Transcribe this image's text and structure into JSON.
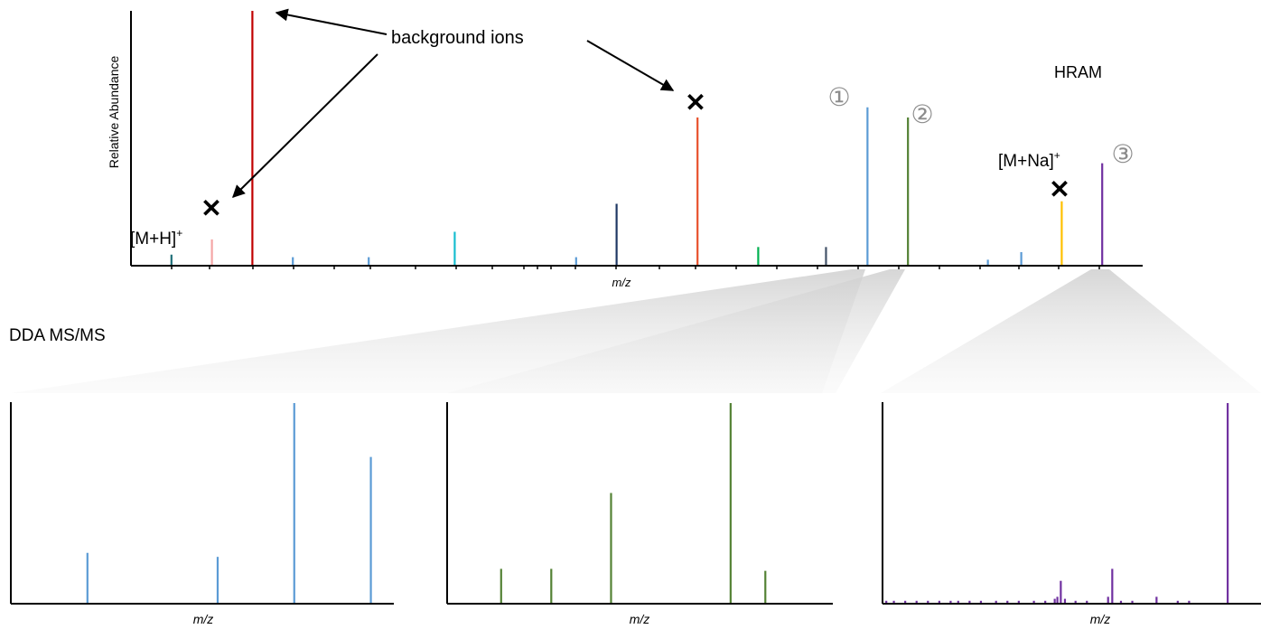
{
  "ms1": {
    "ylabel": "Relative Abundance",
    "xlabel": "m/z",
    "mode_label": "HRAM",
    "callout": "background ions",
    "adduct_h": "[M+H]",
    "adduct_na": "[M+Na]",
    "adduct_sup": "+",
    "precursor_1": "①",
    "precursor_2": "②",
    "precursor_3": "③",
    "exclude_mark": "✕"
  },
  "dda_label": "DDA MS/MS",
  "colors": {
    "axis": "#000000",
    "precursor_1": "#5b9bd5",
    "precursor_2": "#548235",
    "precursor_3": "#7030a0",
    "funnel": "#d9d9d9"
  },
  "chart_data": [
    {
      "id": "hram",
      "type": "bar",
      "xlabel": "m/z",
      "ylabel": "Relative Abundance",
      "xlim": [
        0,
        100
      ],
      "ylim": [
        0,
        100
      ],
      "peaks": [
        {
          "x": 4,
          "y": 4,
          "color": "#1f6f78"
        },
        {
          "x": 8,
          "y": 10,
          "color": "#f4a6a6",
          "role": "M+H"
        },
        {
          "x": 12,
          "y": 100,
          "color": "#c00000",
          "role": "background"
        },
        {
          "x": 16,
          "y": 3,
          "color": "#5b9bd5"
        },
        {
          "x": 23.5,
          "y": 3,
          "color": "#5b9bd5"
        },
        {
          "x": 32,
          "y": 13,
          "color": "#17becf"
        },
        {
          "x": 44,
          "y": 3,
          "color": "#5b9bd5"
        },
        {
          "x": 48,
          "y": 24,
          "color": "#1f3864"
        },
        {
          "x": 56,
          "y": 58,
          "color": "#e8502b",
          "role": "background"
        },
        {
          "x": 62,
          "y": 7,
          "color": "#00b050"
        },
        {
          "x": 68.7,
          "y": 7,
          "color": "#44546a"
        },
        {
          "x": 72.8,
          "y": 62,
          "color": "#5b9bd5",
          "role": "precursor 1"
        },
        {
          "x": 76.8,
          "y": 58,
          "color": "#548235",
          "role": "precursor 2"
        },
        {
          "x": 84.7,
          "y": 2,
          "color": "#5b9bd5"
        },
        {
          "x": 88,
          "y": 5,
          "color": "#5b9bd5"
        },
        {
          "x": 92,
          "y": 25,
          "color": "#ffc000",
          "role": "M+Na"
        },
        {
          "x": 96,
          "y": 40,
          "color": "#7030a0",
          "role": "precursor 3"
        }
      ]
    },
    {
      "id": "msms-1",
      "type": "bar",
      "xlabel": "m/z",
      "xlim": [
        0,
        100
      ],
      "ylim": [
        0,
        100
      ],
      "color": "#5b9bd5",
      "peaks": [
        {
          "x": 20,
          "y": 25
        },
        {
          "x": 54,
          "y": 23
        },
        {
          "x": 74,
          "y": 100
        },
        {
          "x": 94,
          "y": 73
        }
      ]
    },
    {
      "id": "msms-2",
      "type": "bar",
      "xlabel": "m/z",
      "xlim": [
        0,
        100
      ],
      "ylim": [
        0,
        100
      ],
      "color": "#548235",
      "peaks": [
        {
          "x": 14,
          "y": 17
        },
        {
          "x": 27,
          "y": 17
        },
        {
          "x": 42.5,
          "y": 55
        },
        {
          "x": 73.5,
          "y": 100
        },
        {
          "x": 82.5,
          "y": 16
        }
      ]
    },
    {
      "id": "msms-3",
      "type": "bar",
      "xlabel": "m/z",
      "xlim": [
        0,
        100
      ],
      "ylim": [
        0,
        100
      ],
      "color": "#7030a0",
      "peaks": [
        {
          "x": 1,
          "y": 1
        },
        {
          "x": 3,
          "y": 1
        },
        {
          "x": 6,
          "y": 1
        },
        {
          "x": 9,
          "y": 1
        },
        {
          "x": 12,
          "y": 1
        },
        {
          "x": 15,
          "y": 1
        },
        {
          "x": 18,
          "y": 1
        },
        {
          "x": 20,
          "y": 1
        },
        {
          "x": 23,
          "y": 1
        },
        {
          "x": 26,
          "y": 1
        },
        {
          "x": 30,
          "y": 1
        },
        {
          "x": 33,
          "y": 1
        },
        {
          "x": 36,
          "y": 1
        },
        {
          "x": 40,
          "y": 1
        },
        {
          "x": 43,
          "y": 1
        },
        {
          "x": 45.5,
          "y": 2
        },
        {
          "x": 46.2,
          "y": 3
        },
        {
          "x": 47.1,
          "y": 11
        },
        {
          "x": 48.2,
          "y": 2
        },
        {
          "x": 51,
          "y": 1
        },
        {
          "x": 54,
          "y": 1
        },
        {
          "x": 59.6,
          "y": 3
        },
        {
          "x": 60.7,
          "y": 17
        },
        {
          "x": 63,
          "y": 1
        },
        {
          "x": 66,
          "y": 1
        },
        {
          "x": 72.4,
          "y": 3
        },
        {
          "x": 78,
          "y": 1
        },
        {
          "x": 81,
          "y": 1
        },
        {
          "x": 91.2,
          "y": 100
        }
      ]
    }
  ]
}
